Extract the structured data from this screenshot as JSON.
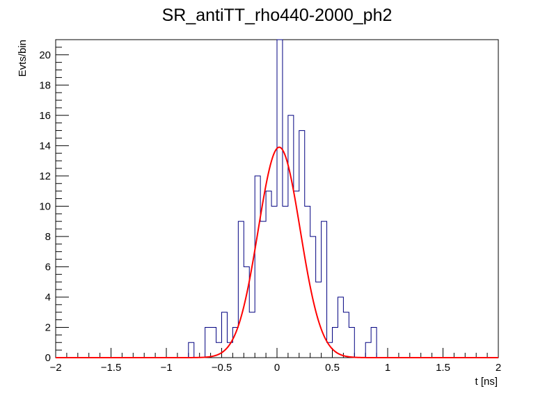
{
  "chart_data": {
    "type": "histogram",
    "title": "SR_antiTT_rho440-2000_ph2",
    "xlabel": "t [ns]",
    "ylabel": "Evts/bin",
    "xlim": [
      -2,
      2
    ],
    "ylim": [
      0,
      21
    ],
    "x_ticks": [
      "−2",
      "−1.5",
      "−1",
      "−0.5",
      "0",
      "0.5",
      "1",
      "1.5",
      "2"
    ],
    "x_tick_values": [
      -2,
      -1.5,
      -1,
      -0.5,
      0,
      0.5,
      1,
      1.5,
      2
    ],
    "y_ticks": [
      "0",
      "2",
      "4",
      "6",
      "8",
      "10",
      "12",
      "14",
      "16",
      "18",
      "20"
    ],
    "y_tick_values": [
      0,
      2,
      4,
      6,
      8,
      10,
      12,
      14,
      16,
      18,
      20
    ],
    "bin_width": 0.05,
    "bin_start": -2,
    "histogram_color": "#000080",
    "counts": [
      0,
      0,
      0,
      0,
      0,
      0,
      0,
      0,
      0,
      0,
      0,
      0,
      0,
      0,
      0,
      0,
      0,
      0,
      0,
      0,
      0,
      0,
      0,
      0,
      1,
      0,
      0,
      2,
      2,
      1,
      3,
      1,
      2,
      9,
      6,
      3,
      12,
      9,
      11,
      10,
      21,
      10,
      16,
      11,
      15,
      10,
      8,
      5,
      9,
      1,
      2,
      4,
      3,
      2,
      0,
      0,
      1,
      2,
      0,
      0,
      0,
      0,
      0,
      0,
      0,
      0,
      0,
      0,
      0,
      0,
      0,
      0,
      0,
      0,
      0,
      0,
      0,
      0,
      0,
      0
    ],
    "fit": {
      "type": "gaussian",
      "color": "#ff0000",
      "amplitude": 13.9,
      "mean": 0.02,
      "sigma": 0.19,
      "range": [
        -2,
        2
      ]
    }
  }
}
